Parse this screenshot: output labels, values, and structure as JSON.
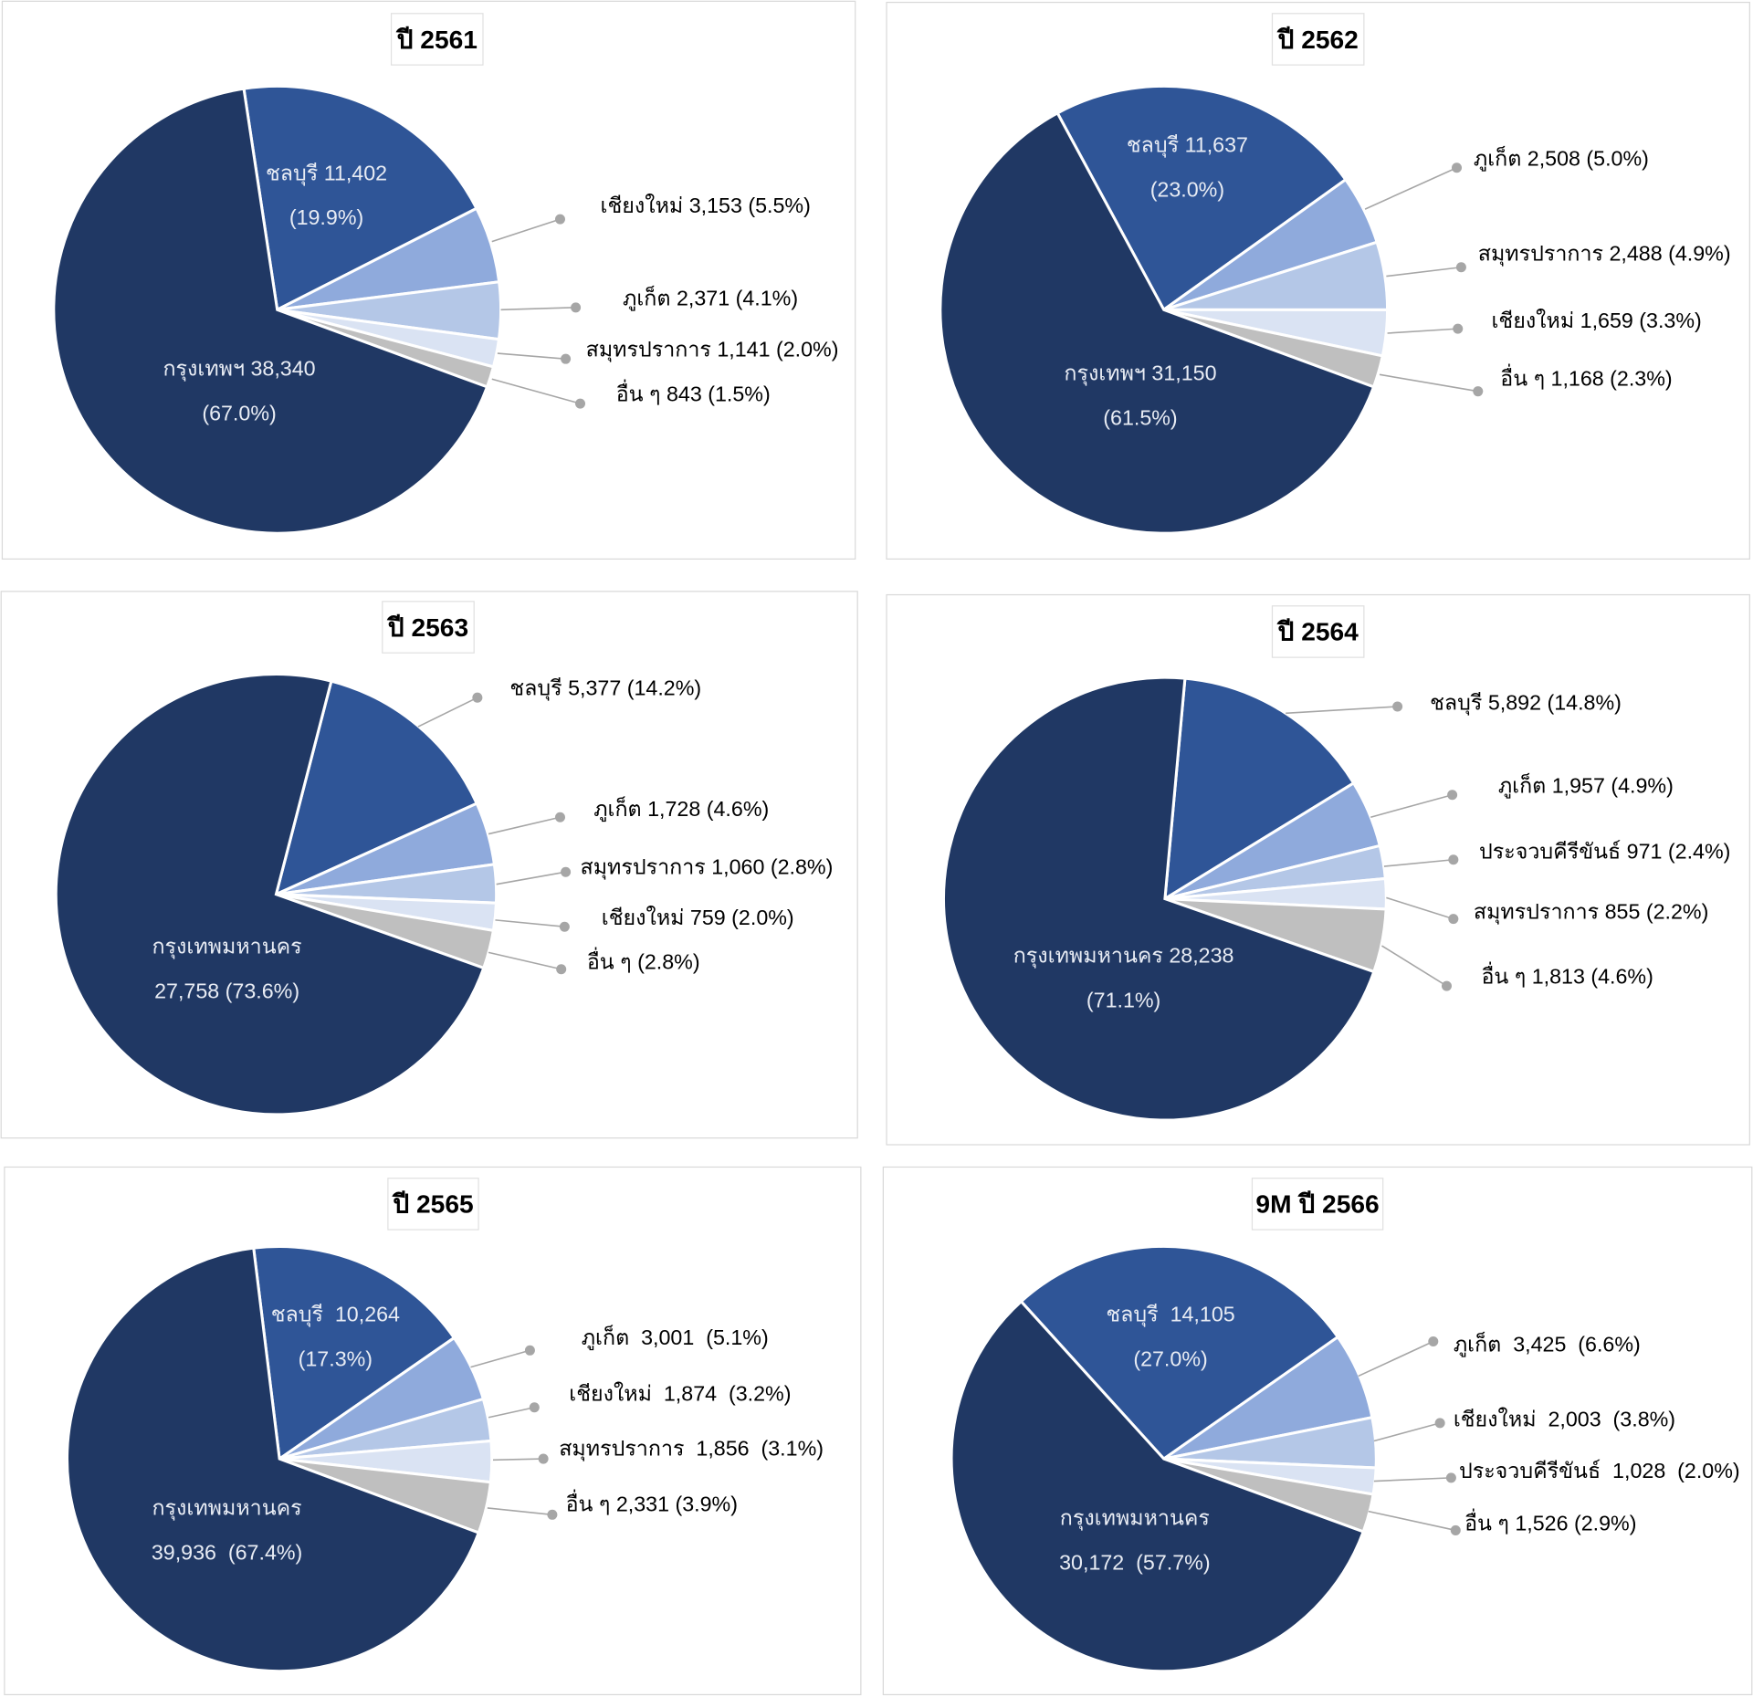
{
  "colors": {
    "bangkok": "#203864",
    "chonburi": "#2F5597",
    "slice3": "#8FAADC",
    "slice4": "#B4C7E7",
    "slice5": "#DAE3F3",
    "others": "#BFBFBF",
    "leader": "#A6A6A6"
  },
  "chart_data": [
    {
      "type": "pie",
      "title": "ปี 2561",
      "slices": [
        {
          "name": "ชลบุรี",
          "value": 11402,
          "pct": 19.9,
          "label_lines": [
            "ชลบุรี 11,402",
            "(19.9%)"
          ]
        },
        {
          "name": "เชียงใหม่",
          "value": 3153,
          "pct": 5.5,
          "label_lines": [
            "เชียงใหม่ 3,153 (5.5%)"
          ]
        },
        {
          "name": "ภูเก็ต",
          "value": 2371,
          "pct": 4.1,
          "label_lines": [
            "ภูเก็ต 2,371 (4.1%)"
          ]
        },
        {
          "name": "สมุทรปราการ",
          "value": 1141,
          "pct": 2.0,
          "label_lines": [
            "สมุทรปราการ 1,141 (2.0%)"
          ]
        },
        {
          "name": "อื่น ๆ",
          "value": 843,
          "pct": 1.5,
          "label_lines": [
            "อื่น ๆ 843 (1.5%)"
          ]
        },
        {
          "name": "กรุงเทพฯ",
          "value": 38340,
          "pct": 67.0,
          "label_lines": [
            "กรุงเทพฯ 38,340",
            "(67.0%)"
          ]
        }
      ]
    },
    {
      "type": "pie",
      "title": "ปี 2562",
      "slices": [
        {
          "name": "ชลบุรี",
          "value": 11637,
          "pct": 23.0,
          "label_lines": [
            "ชลบุรี 11,637",
            "(23.0%)"
          ]
        },
        {
          "name": "ภูเก็ต",
          "value": 2508,
          "pct": 5.0,
          "label_lines": [
            "ภูเก็ต 2,508 (5.0%)"
          ]
        },
        {
          "name": "สมุทรปราการ",
          "value": 2488,
          "pct": 4.9,
          "label_lines": [
            "สมุทรปราการ 2,488 (4.9%)"
          ]
        },
        {
          "name": "เชียงใหม่",
          "value": 1659,
          "pct": 3.3,
          "label_lines": [
            "เชียงใหม่ 1,659 (3.3%)"
          ]
        },
        {
          "name": "อื่น ๆ",
          "value": 1168,
          "pct": 2.3,
          "label_lines": [
            "อื่น ๆ 1,168 (2.3%)"
          ]
        },
        {
          "name": "กรุงเทพฯ",
          "value": 31150,
          "pct": 61.5,
          "label_lines": [
            "กรุงเทพฯ 31,150",
            "(61.5%)"
          ]
        }
      ]
    },
    {
      "type": "pie",
      "title": "ปี 2563",
      "slices": [
        {
          "name": "ชลบุรี",
          "value": 5377,
          "pct": 14.2,
          "label_lines": [
            "ชลบุรี 5,377 (14.2%)"
          ]
        },
        {
          "name": "ภูเก็ต",
          "value": 1728,
          "pct": 4.6,
          "label_lines": [
            "ภูเก็ต 1,728 (4.6%)"
          ]
        },
        {
          "name": "สมุทรปราการ",
          "value": 1060,
          "pct": 2.8,
          "label_lines": [
            "สมุทรปราการ 1,060 (2.8%)"
          ]
        },
        {
          "name": "เชียงใหม่",
          "value": 759,
          "pct": 2.0,
          "label_lines": [
            "เชียงใหม่ 759 (2.0%)"
          ]
        },
        {
          "name": "อื่น ๆ",
          "value": null,
          "pct": 2.8,
          "label_lines": [
            "อื่น ๆ (2.8%)"
          ]
        },
        {
          "name": "กรุงเทพมหานคร",
          "value": 27758,
          "pct": 73.6,
          "label_lines": [
            "กรุงเทพมหานคร",
            "27,758 (73.6%)"
          ]
        }
      ]
    },
    {
      "type": "pie",
      "title": "ปี 2564",
      "slices": [
        {
          "name": "ชลบุรี",
          "value": 5892,
          "pct": 14.8,
          "label_lines": [
            "ชลบุรี 5,892 (14.8%)"
          ]
        },
        {
          "name": "ภูเก็ต",
          "value": 1957,
          "pct": 4.9,
          "label_lines": [
            "ภูเก็ต 1,957 (4.9%)"
          ]
        },
        {
          "name": "ประจวบคีรีขันธ์",
          "value": 971,
          "pct": 2.4,
          "label_lines": [
            "ประจวบคีรีขันธ์ 971 (2.4%)"
          ]
        },
        {
          "name": "สมุทรปราการ",
          "value": 855,
          "pct": 2.2,
          "label_lines": [
            "สมุทรปราการ 855 (2.2%)"
          ]
        },
        {
          "name": "อื่น ๆ",
          "value": 1813,
          "pct": 4.6,
          "label_lines": [
            "อื่น ๆ 1,813 (4.6%)"
          ]
        },
        {
          "name": "กรุงเทพมหานคร",
          "value": 28238,
          "pct": 71.1,
          "label_lines": [
            "กรุงเทพมหานคร 28,238",
            "(71.1%)"
          ]
        }
      ]
    },
    {
      "type": "pie",
      "title": "ปี 2565",
      "slices": [
        {
          "name": "ชลบุรี",
          "value": 10264,
          "pct": 17.3,
          "label_lines": [
            "ชลบุรี  10,264",
            "(17.3%)"
          ]
        },
        {
          "name": "ภูเก็ต",
          "value": 3001,
          "pct": 5.1,
          "label_lines": [
            "ภูเก็ต  3,001  (5.1%)"
          ]
        },
        {
          "name": "เชียงใหม่",
          "value": 1874,
          "pct": 3.2,
          "label_lines": [
            "เชียงใหม่  1,874  (3.2%)"
          ]
        },
        {
          "name": "สมุทรปราการ",
          "value": 1856,
          "pct": 3.1,
          "label_lines": [
            "สมุทรปราการ  1,856  (3.1%)"
          ]
        },
        {
          "name": "อื่น ๆ",
          "value": 2331,
          "pct": 3.9,
          "label_lines": [
            "อื่น ๆ 2,331 (3.9%)"
          ]
        },
        {
          "name": "กรุงเทพมหานคร",
          "value": 39936,
          "pct": 67.4,
          "label_lines": [
            "กรุงเทพมหานคร",
            "39,936  (67.4%)"
          ]
        }
      ]
    },
    {
      "type": "pie",
      "title": "9M ปี 2566",
      "slices": [
        {
          "name": "ชลบุรี",
          "value": 14105,
          "pct": 27.0,
          "label_lines": [
            "ชลบุรี  14,105",
            "(27.0%)"
          ]
        },
        {
          "name": "ภูเก็ต",
          "value": 3425,
          "pct": 6.6,
          "label_lines": [
            "ภูเก็ต  3,425  (6.6%)"
          ]
        },
        {
          "name": "เชียงใหม่",
          "value": 2003,
          "pct": 3.8,
          "label_lines": [
            "เชียงใหม่  2,003  (3.8%)"
          ]
        },
        {
          "name": "ประจวบคีรีขันธ์",
          "value": 1028,
          "pct": 2.0,
          "label_lines": [
            "ประจวบคีรีขันธ์  1,028  (2.0%)"
          ]
        },
        {
          "name": "อื่น ๆ",
          "value": 1526,
          "pct": 2.9,
          "label_lines": [
            "อื่น ๆ 1,526 (2.9%)"
          ]
        },
        {
          "name": "กรุงเทพมหานคร",
          "value": 30172,
          "pct": 57.7,
          "label_lines": [
            "กรุงเทพมหานคร",
            "30,172  (57.7%)"
          ]
        }
      ]
    }
  ]
}
